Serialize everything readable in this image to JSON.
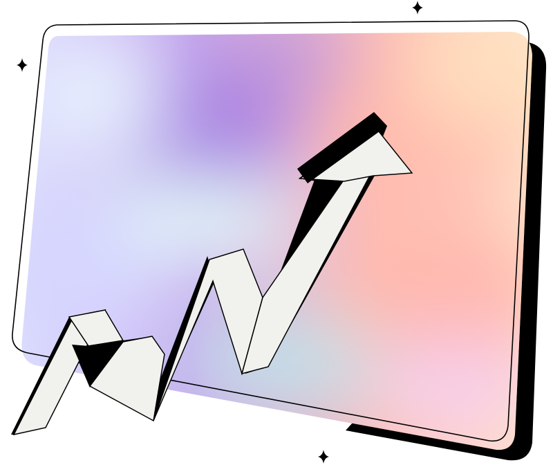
{
  "illustration": {
    "icons": [
      "sparkle-icon",
      "trend-arrow-icon"
    ],
    "colors": {
      "outline": "#000000",
      "arrow_face": "#f1f2ee",
      "panel_shadow": "#000000",
      "gradient_purple": "#b48ce4",
      "gradient_peach": "#ffcfa8",
      "gradient_pink": "#ffb3b0",
      "gradient_mint": "#d9fbf4",
      "gradient_lavender": "#d6d8ff",
      "background": "#ffffff"
    }
  }
}
